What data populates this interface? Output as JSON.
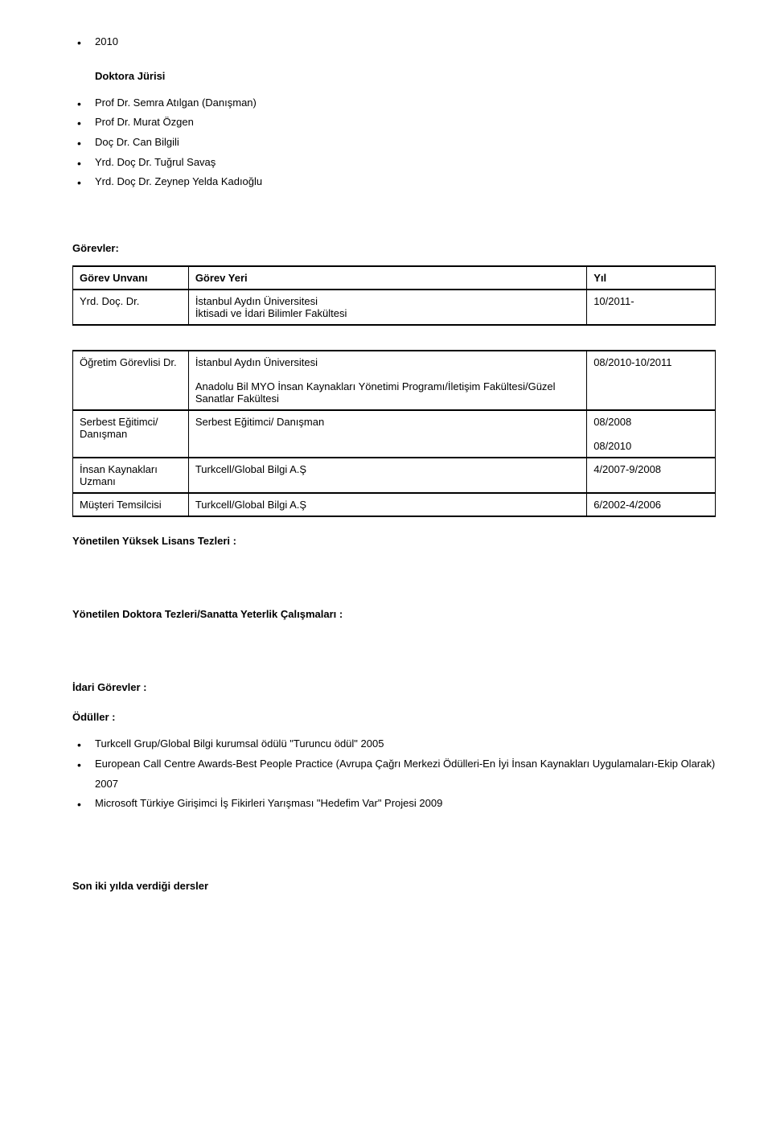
{
  "top_bullets": [
    "2010"
  ],
  "doktora_jurisi": {
    "heading": "Doktora Jürisi",
    "items": [
      "Prof Dr. Semra Atılgan (Danışman)",
      "Prof Dr. Murat Özgen",
      "Doç Dr. Can Bilgili",
      "Yrd. Doç Dr. Tuğrul Savaş",
      "Yrd. Doç Dr. Zeynep Yelda Kadıoğlu"
    ]
  },
  "gorevler": {
    "heading": "Görevler:",
    "table1": {
      "headers": {
        "role": "Görev Unvanı",
        "place": "Görev Yeri",
        "year": "Yıl"
      },
      "rows": [
        {
          "role": "Yrd. Doç. Dr.",
          "place": "İstanbul Aydın Üniversitesi\nİktisadi ve İdari Bilimler Fakültesi",
          "year": "10/2011-"
        }
      ]
    },
    "table2": {
      "rows": [
        {
          "role": "Öğretim Görevlisi Dr.",
          "place": "İstanbul Aydın Üniversitesi\n\nAnadolu Bil MYO İnsan Kaynakları Yönetimi Programı/İletişim Fakültesi/Güzel Sanatlar Fakültesi",
          "year": "08/2010-10/2011"
        },
        {
          "role": "Serbest Eğitimci/ Danışman",
          "place": "Serbest Eğitimci/ Danışman",
          "year": "08/2008\n\n08/2010"
        },
        {
          "role": "İnsan Kaynakları Uzmanı",
          "place": "Turkcell/Global Bilgi A.Ş",
          "year": "4/2007-9/2008"
        },
        {
          "role": "Müşteri Temsilcisi",
          "place": "Turkcell/Global Bilgi A.Ş",
          "year": "6/2002-4/2006"
        }
      ]
    }
  },
  "headings": {
    "yonetilen_yl": "Yönetilen Yüksek Lisans Tezleri  :",
    "yonetilen_dr": "Yönetilen Doktora Tezleri/Sanatta Yeterlik Çalışmaları :",
    "idari": "İdari Görevler :",
    "oduller": "Ödüller :"
  },
  "oduller_items": [
    "Turkcell Grup/Global Bilgi kurumsal ödülü \"Turuncu ödül\" 2005",
    "European Call Centre Awards-Best People Practice (Avrupa Çağrı Merkezi Ödülleri-En İyi İnsan Kaynakları Uygulamaları-Ekip Olarak) 2007",
    "Microsoft Türkiye Girişimci İş Fikirleri Yarışması \"Hedefim Var\" Projesi 2009"
  ],
  "son_iki_yilda": "Son iki yılda verdiği dersler",
  "colors": {
    "text": "#000000",
    "background": "#ffffff",
    "border": "#000000"
  }
}
